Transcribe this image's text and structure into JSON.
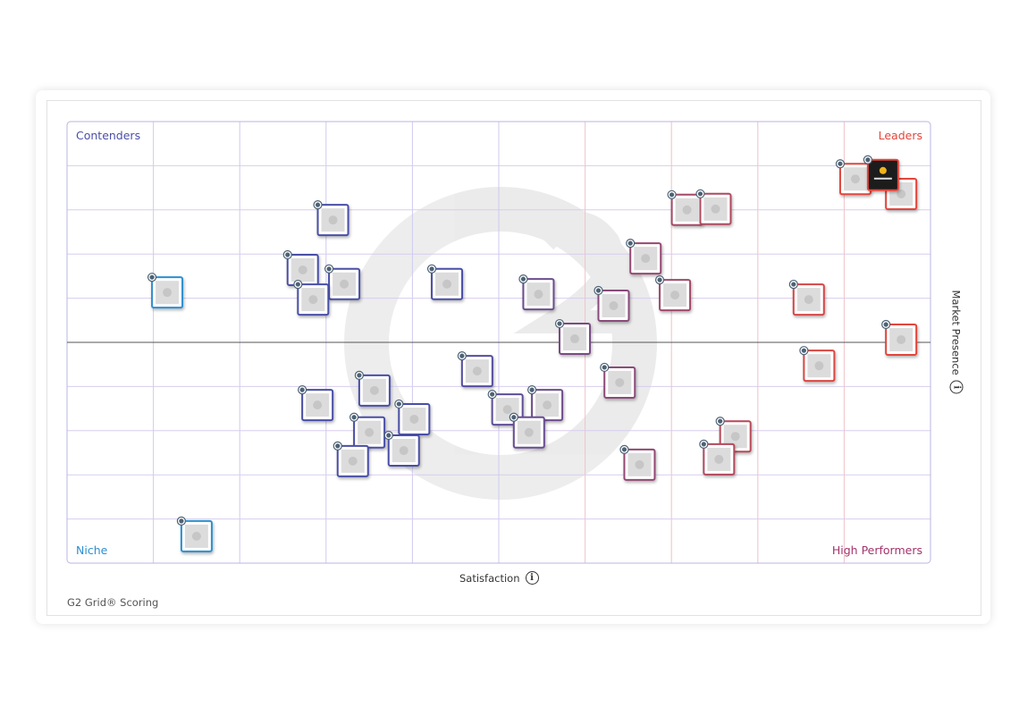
{
  "chart_data": {
    "type": "scatter",
    "title": "",
    "xlabel": "Satisfaction",
    "ylabel": "Market Presence",
    "xlim": [
      0,
      100
    ],
    "ylim": [
      0,
      100
    ],
    "grid": true,
    "quadrants": {
      "top_left": "Contenders",
      "top_right": "Leaders",
      "bottom_left": "Niche",
      "bottom_right": "High Performers"
    },
    "highlighted_product_logo": "sitecore",
    "points": [
      {
        "satisfaction": 11.6,
        "market_presence": 61.3
      },
      {
        "satisfaction": 30.8,
        "market_presence": 77.7
      },
      {
        "satisfaction": 27.3,
        "market_presence": 66.4
      },
      {
        "satisfaction": 32.1,
        "market_presence": 63.2
      },
      {
        "satisfaction": 28.5,
        "market_presence": 59.7
      },
      {
        "satisfaction": 44.0,
        "market_presence": 63.2
      },
      {
        "satisfaction": 54.6,
        "market_presence": 60.9
      },
      {
        "satisfaction": 63.3,
        "market_presence": 58.3
      },
      {
        "satisfaction": 67.0,
        "market_presence": 69.0
      },
      {
        "satisfaction": 70.4,
        "market_presence": 60.7
      },
      {
        "satisfaction": 71.8,
        "market_presence": 80.0
      },
      {
        "satisfaction": 75.1,
        "market_presence": 80.2
      },
      {
        "satisfaction": 85.9,
        "market_presence": 59.7
      },
      {
        "satisfaction": 91.3,
        "market_presence": 87.0
      },
      {
        "satisfaction": 96.6,
        "market_presence": 83.6
      },
      {
        "satisfaction": 96.6,
        "market_presence": 50.6
      },
      {
        "satisfaction": 87.1,
        "market_presence": 44.7
      },
      {
        "satisfaction": 58.8,
        "market_presence": 50.8
      },
      {
        "satisfaction": 47.5,
        "market_presence": 43.5
      },
      {
        "satisfaction": 64.0,
        "market_presence": 40.9
      },
      {
        "satisfaction": 29.0,
        "market_presence": 35.8
      },
      {
        "satisfaction": 35.6,
        "market_presence": 39.1
      },
      {
        "satisfaction": 40.2,
        "market_presence": 32.6
      },
      {
        "satisfaction": 35.0,
        "market_presence": 29.6
      },
      {
        "satisfaction": 51.0,
        "market_presence": 34.8
      },
      {
        "satisfaction": 55.6,
        "market_presence": 35.8
      },
      {
        "satisfaction": 53.5,
        "market_presence": 29.6
      },
      {
        "satisfaction": 39.0,
        "market_presence": 25.5
      },
      {
        "satisfaction": 33.1,
        "market_presence": 23.1
      },
      {
        "satisfaction": 66.3,
        "market_presence": 22.3
      },
      {
        "satisfaction": 77.4,
        "market_presence": 28.7
      },
      {
        "satisfaction": 75.5,
        "market_presence": 23.5
      },
      {
        "satisfaction": 15.0,
        "market_presence": 6.1
      },
      {
        "satisfaction": 94.5,
        "market_presence": 87.9,
        "highlighted": true
      }
    ]
  },
  "footer": "G2 Grid® Scoring",
  "info_glyph": "i",
  "colors": {
    "contenders": "#4a4fa6",
    "leaders": "#e3453b",
    "niche": "#2d8fd0",
    "high_performers": "#a4336b",
    "highlight_tile": "#1e1e1e"
  }
}
